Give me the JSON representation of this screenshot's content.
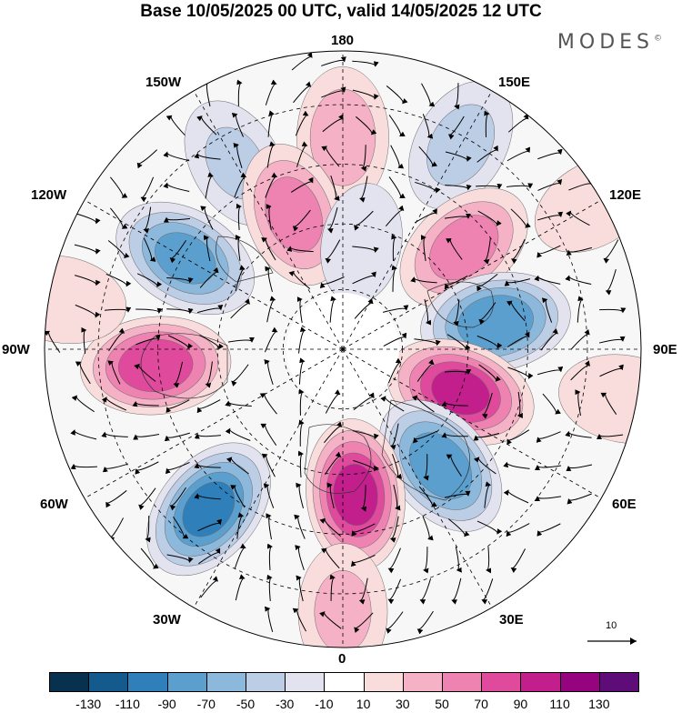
{
  "title": "Base 10/05/2025 00 UTC, valid 14/05/2025 12 UTC",
  "brand": "MODES",
  "brand_mark": "©",
  "longitude_labels": {
    "top": "180",
    "top_right": "150E",
    "right_upper": "120E",
    "right": "90E",
    "right_lower": "60E",
    "bottom_right": "30E",
    "bottom": "0",
    "bottom_left": "30W",
    "left_lower": "60W",
    "left": "90W",
    "left_upper": "120W",
    "top_left": "150W"
  },
  "reference_vector": "10",
  "colorbar": {
    "colors": [
      "#08304f",
      "#145a8c",
      "#2f7fba",
      "#5b9fcf",
      "#8cb8dc",
      "#bccde6",
      "#e3e3f0",
      "#ffffff",
      "#f9dcdc",
      "#f5b1c6",
      "#ee82b0",
      "#df4a9c",
      "#c31f8c",
      "#96037e",
      "#5e0c78"
    ],
    "tick_labels": [
      "-130",
      "-110",
      "-90",
      "-70",
      "-50",
      "-30",
      "-10",
      "10",
      "30",
      "50",
      "70",
      "90",
      "110",
      "130"
    ]
  },
  "anomalies": [
    {
      "lon": 180,
      "r": 0.71,
      "value": 45
    },
    {
      "lon": 150,
      "r": 0.79,
      "value": -38
    },
    {
      "lon": 130,
      "r": 0.53,
      "value": 62
    },
    {
      "lon": 100,
      "r": 0.52,
      "value": -90
    },
    {
      "lon": 70,
      "r": 0.42,
      "value": 98
    },
    {
      "lon": 120,
      "r": 0.97,
      "value": 22
    },
    {
      "lon": 80,
      "r": 0.96,
      "value": 30
    },
    {
      "lon": 40,
      "r": 0.51,
      "value": -88
    },
    {
      "lon": 5,
      "r": 0.49,
      "value": 100
    },
    {
      "lon": -40,
      "r": 0.7,
      "value": -100
    },
    {
      "lon": -85,
      "r": 0.63,
      "value": 88
    },
    {
      "lon": -120,
      "r": 0.61,
      "value": -78
    },
    {
      "lon": -150,
      "r": 0.72,
      "value": -32
    },
    {
      "lon": -160,
      "r": 0.48,
      "value": 62
    },
    {
      "lon": 170,
      "r": 0.36,
      "value": -18
    },
    {
      "lon": 0,
      "r": 0.88,
      "value": 35
    },
    {
      "lon": -100,
      "r": 0.96,
      "value": 28
    }
  ]
}
